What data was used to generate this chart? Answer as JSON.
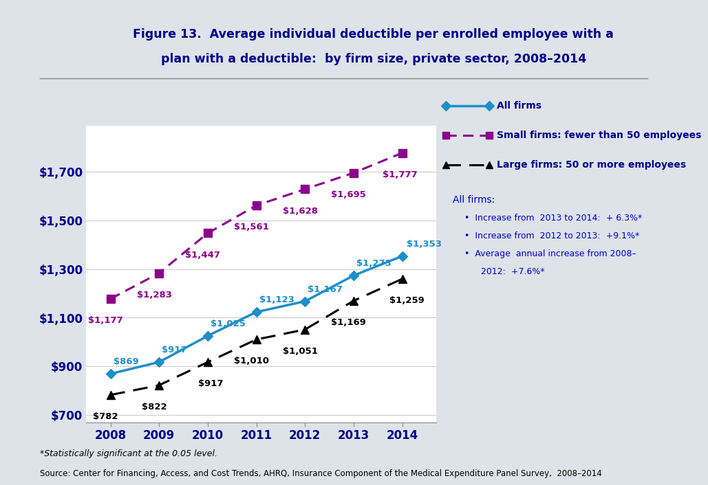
{
  "title_line1": "Figure 13.  Average individual deductible per enrolled employee with a",
  "title_line2": "plan with a deductible:  by firm size, private sector, 2008–2014",
  "years": [
    2008,
    2009,
    2010,
    2011,
    2012,
    2013,
    2014
  ],
  "all_firms": [
    869,
    917,
    1025,
    1123,
    1167,
    1273,
    1353
  ],
  "small_firms": [
    1177,
    1283,
    1447,
    1561,
    1628,
    1695,
    1777
  ],
  "large_firms": [
    782,
    822,
    917,
    1010,
    1051,
    1169,
    1259
  ],
  "all_firms_color": "#1c8fc9",
  "small_firms_color": "#8b008b",
  "large_firms_color": "#000000",
  "all_firms_label": "All firms",
  "small_firms_label": "Small firms: fewer than 50 employees",
  "large_firms_label": "Large firms: 50 or more employees",
  "ylabel_ticks": [
    700,
    900,
    1100,
    1300,
    1500,
    1700
  ],
  "ylim": [
    670,
    1890
  ],
  "footnote1": "*Statistically significant at the 0.05 level.",
  "footnote2": "Source: Center for Financing, Access, and Cost Trends, AHRQ, Insurance Component of the Medical Expenditure Panel Survey,  2008–2014",
  "textbox_title": "All firms:",
  "textbox_lines": [
    "Increase from  2013 to 2014:  + 6.3%*",
    "Increase from  2012 to 2013:  +9.1%*",
    "Average  annual increase from 2008–",
    "2012:  +7.6%*"
  ],
  "background_color": "#dde3e8",
  "plot_bg_color": "#ffffff",
  "title_color": "#00008b",
  "axis_label_color": "#00008b",
  "legend_text_color": "#00008b",
  "annotation_color_all": "#1c8fc9",
  "annotation_color_small": "#8b008b",
  "annotation_color_large": "#000000",
  "textbox_color": "#0000cd"
}
